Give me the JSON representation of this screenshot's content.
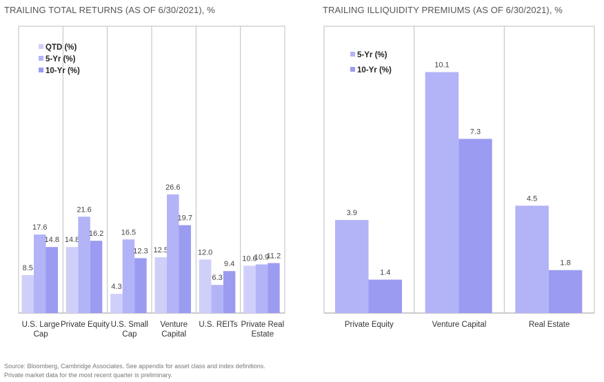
{
  "chart_data": [
    {
      "type": "bar",
      "title": "TRAILING TOTAL RETURNS (AS OF 6/30/2021), %",
      "categories": [
        [
          "U.S. Large",
          "Cap"
        ],
        [
          "Private Equity"
        ],
        [
          "U.S. Small",
          "Cap"
        ],
        [
          "Venture",
          "Capital"
        ],
        [
          "U.S. REITs"
        ],
        [
          "Private Real",
          "Estate"
        ]
      ],
      "series": [
        {
          "name": "QTD (%)",
          "color": "#cfcffa",
          "values": [
            8.5,
            14.8,
            4.3,
            12.5,
            12.0,
            10.6
          ]
        },
        {
          "name": "5-Yr (%)",
          "color": "#b3b3f7",
          "values": [
            17.6,
            21.6,
            16.5,
            26.6,
            6.3,
            10.9
          ]
        },
        {
          "name": "10-Yr (%)",
          "color": "#9b9bf2",
          "values": [
            14.8,
            16.2,
            12.3,
            19.7,
            9.4,
            11.2
          ]
        }
      ],
      "value_labels": [
        [
          "8.5",
          "14.8",
          "4.3",
          "12.5",
          "12.0",
          "10.6"
        ],
        [
          "17.6",
          "21.6",
          "16.5",
          "26.6",
          "6.3",
          "10.9"
        ],
        [
          "14.8",
          "16.2",
          "12.3",
          "19.7",
          "9.4",
          "11.2"
        ]
      ],
      "ylim": [
        0,
        30
      ],
      "xlabel": "",
      "ylabel": "",
      "legend": "top-left",
      "grid": false
    },
    {
      "type": "bar",
      "title": "TRAILING ILLIQUIDITY PREMIUMS (AS OF 6/30/2021), %",
      "categories": [
        [
          "Private Equity"
        ],
        [
          "Venture Capital"
        ],
        [
          "Real Estate"
        ]
      ],
      "series": [
        {
          "name": "5-Yr (%)",
          "color": "#b3b3f7",
          "values": [
            3.9,
            10.1,
            4.5
          ]
        },
        {
          "name": "10-Yr (%)",
          "color": "#9b9bf2",
          "values": [
            1.4,
            7.3,
            1.8
          ]
        }
      ],
      "value_labels": [
        [
          "3.9",
          "10.1",
          "4.5"
        ],
        [
          "1.4",
          "7.3",
          "1.8"
        ]
      ],
      "ylim": [
        0,
        12
      ],
      "xlabel": "",
      "ylabel": "",
      "legend": "top-left",
      "grid": false
    }
  ],
  "footnotes": [
    "Source: Bloomberg, Cambridge Associates. See appendix for asset class and index definitions.",
    "Private market data for the most recent quarter is preliminary."
  ]
}
